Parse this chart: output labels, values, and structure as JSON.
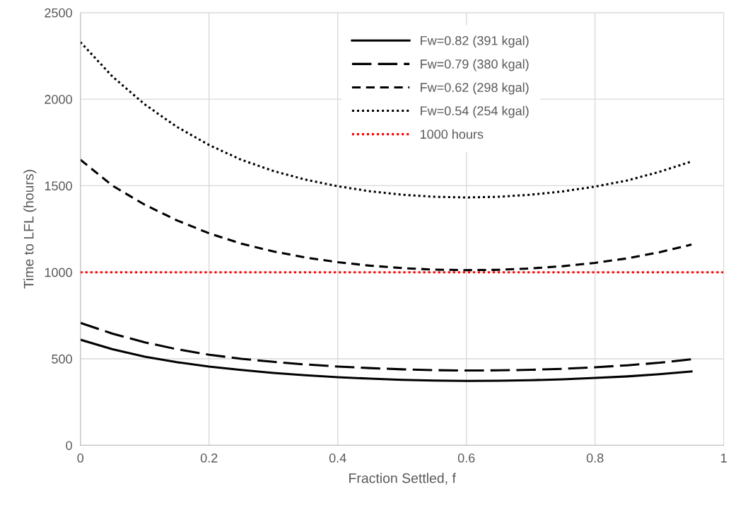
{
  "chart_data": {
    "type": "line",
    "xlabel": "Fraction Settled, f",
    "ylabel": "Time to LFL (hours)",
    "x": [
      0,
      0.05,
      0.1,
      0.15,
      0.2,
      0.25,
      0.3,
      0.35,
      0.4,
      0.45,
      0.5,
      0.55,
      0.6,
      0.65,
      0.7,
      0.75,
      0.8,
      0.85,
      0.9,
      0.95
    ],
    "series": [
      {
        "name": "Fw=0.82 (391 kgal)",
        "color": "#000000",
        "line_style": "solid",
        "values": [
          610,
          555,
          512,
          480,
          455,
          435,
          418,
          405,
          393,
          385,
          378,
          374,
          372,
          373,
          376,
          381,
          389,
          398,
          411,
          427
        ]
      },
      {
        "name": "Fw=0.79 (380 kgal)",
        "color": "#000000",
        "line_style": "longdash",
        "values": [
          707,
          645,
          595,
          555,
          523,
          500,
          482,
          467,
          455,
          446,
          439,
          434,
          432,
          433,
          436,
          442,
          451,
          462,
          477,
          497
        ]
      },
      {
        "name": "Fw=0.62 (298 kgal)",
        "color": "#000000",
        "line_style": "dashed",
        "values": [
          1650,
          1500,
          1390,
          1300,
          1225,
          1165,
          1120,
          1085,
          1058,
          1038,
          1024,
          1015,
          1012,
          1014,
          1022,
          1035,
          1054,
          1080,
          1115,
          1160
        ]
      },
      {
        "name": "Fw=0.54 (254 kgal)",
        "color": "#000000",
        "line_style": "dotted",
        "values": [
          2330,
          2130,
          1970,
          1840,
          1735,
          1650,
          1585,
          1535,
          1497,
          1468,
          1448,
          1436,
          1432,
          1436,
          1448,
          1467,
          1495,
          1530,
          1580,
          1640
        ]
      },
      {
        "name": "1000 hours",
        "color": "#ff0000",
        "line_style": "dotted",
        "x": [
          0,
          1
        ],
        "values": [
          1000,
          1000
        ]
      }
    ],
    "xlim": [
      0,
      1
    ],
    "xticks": [
      0,
      0.2,
      0.4,
      0.6,
      0.8,
      1
    ],
    "ylim": [
      0,
      2500
    ],
    "yticks": [
      0,
      500,
      1000,
      1500,
      2000,
      2500
    ],
    "grid": true,
    "legend": "top",
    "marker": "none"
  }
}
